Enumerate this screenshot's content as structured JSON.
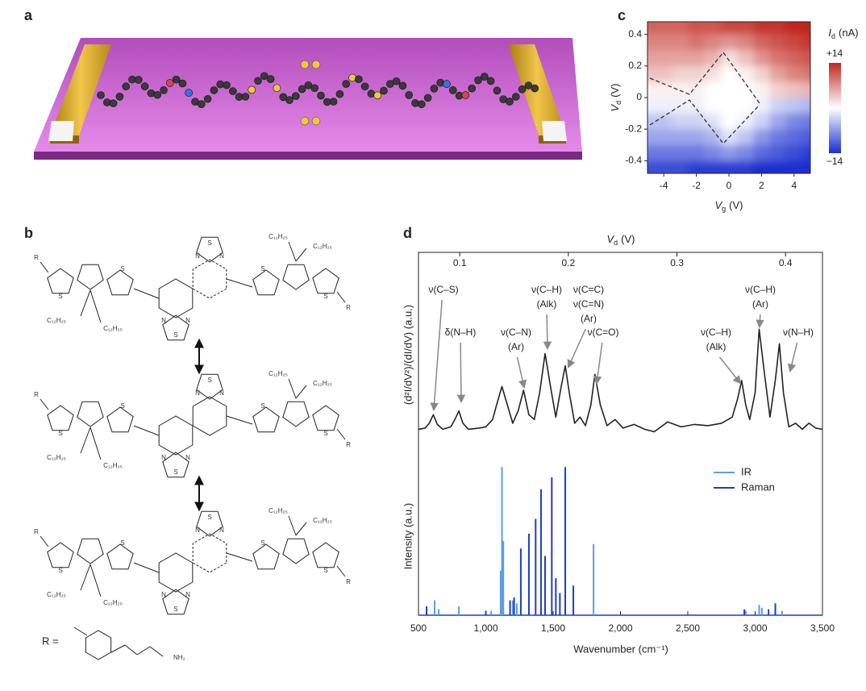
{
  "panel_labels": [
    "a",
    "b",
    "c",
    "d"
  ],
  "structure": {
    "r": "R",
    "s": "S",
    "n": "N",
    "alkyl": "C₁₂H₂₅",
    "r_def": "R =",
    "amine": "NH₂"
  },
  "chart_data": [
    {
      "type": "heatmap",
      "x": [
        -5,
        -4,
        -3,
        -2,
        -1,
        0,
        1,
        2,
        3,
        4,
        5
      ],
      "y": [
        0.45,
        0.35,
        0.25,
        0.15,
        0.05,
        -0.05,
        -0.15,
        -0.25,
        -0.35,
        -0.45
      ],
      "values": [
        [
          10,
          10,
          10,
          11,
          11,
          12,
          12,
          13,
          13,
          14,
          14
        ],
        [
          8,
          8,
          8,
          9,
          8,
          7,
          8,
          10,
          11,
          12,
          13
        ],
        [
          6,
          6,
          6,
          6,
          5,
          2,
          4,
          7,
          9,
          10,
          11
        ],
        [
          4,
          4,
          3,
          3,
          2,
          0,
          1,
          3,
          6,
          8,
          9
        ],
        [
          1,
          1,
          1,
          1,
          0,
          0,
          0,
          1,
          3,
          4,
          5
        ],
        [
          -1,
          -1,
          -1,
          -1,
          0,
          0,
          0,
          -1,
          -3,
          -4,
          -5
        ],
        [
          -4,
          -4,
          -3,
          -3,
          -2,
          0,
          -1,
          -3,
          -6,
          -8,
          -9
        ],
        [
          -6,
          -6,
          -6,
          -6,
          -5,
          -2,
          -4,
          -7,
          -9,
          -10,
          -11
        ],
        [
          -9,
          -9,
          -9,
          -9,
          -8,
          -7,
          -8,
          -10,
          -11,
          -12,
          -13
        ],
        [
          -12,
          -12,
          -12,
          -13,
          -13,
          -13,
          -13,
          -14,
          -14,
          -14,
          -14
        ]
      ],
      "xlim": [
        -5,
        5
      ],
      "ylim": [
        -0.48,
        0.48
      ],
      "xticks": [
        -4,
        -2,
        0,
        2,
        4
      ],
      "yticks": [
        -0.4,
        -0.2,
        0,
        0.2,
        0.4
      ],
      "xlabel": {
        "symbol": "V",
        "sub": "g",
        "unit": "(V)"
      },
      "ylabel": {
        "symbol": "V",
        "sub": "d",
        "unit": "(V)"
      },
      "colorbar": {
        "symbol": "I",
        "sub": "d",
        "unit": "(nA)",
        "zlim": [
          -14,
          14
        ],
        "ticks": [
          {
            "value": 14,
            "label": "+14"
          },
          {
            "value": -14,
            "label": "−14"
          }
        ],
        "colors": [
          "#1a2fd0",
          "#ffffff",
          "#c0271f"
        ]
      }
    },
    {
      "type": "spectrum",
      "xlabel": "Wavenumber (cm⁻¹)",
      "xlim": [
        500,
        3500
      ],
      "xticks": [
        500,
        {
          "value": 1000,
          "label": "1,000"
        },
        {
          "value": 1500,
          "label": "1,500"
        },
        {
          "value": 2000,
          "label": "2,000"
        },
        {
          "value": 2500,
          "label": "2,500"
        },
        {
          "value": 3000,
          "label": "3,000"
        },
        {
          "value": 3500,
          "label": "3,500"
        }
      ],
      "x2label": {
        "symbol": "V",
        "sub": "d",
        "unit": "(V)"
      },
      "x2lim": [
        0.062,
        0.434
      ],
      "x2ticks": [
        0.1,
        0.2,
        0.3,
        0.4
      ],
      "top": {
        "ylabel": "(d²I/dV²)/(dI/dV) (a.u.)",
        "ylim": [
          -0.05,
          1
        ],
        "x": [
          500,
          550,
          580,
          610,
          640,
          680,
          740,
          770,
          800,
          830,
          870,
          950,
          1000,
          1050,
          1080,
          1120,
          1160,
          1200,
          1240,
          1280,
          1320,
          1360,
          1400,
          1440,
          1480,
          1520,
          1560,
          1590,
          1620,
          1660,
          1700,
          1740,
          1780,
          1810,
          1850,
          1900,
          1960,
          2020,
          2100,
          2180,
          2250,
          2350,
          2450,
          2550,
          2650,
          2750,
          2830,
          2870,
          2900,
          2930,
          2960,
          3000,
          3030,
          3070,
          3110,
          3150,
          3180,
          3210,
          3250,
          3300,
          3350,
          3400,
          3450,
          3500
        ],
        "series": [
          {
            "color": "#222222",
            "values": [
              0.0,
              0.01,
              0.05,
              0.12,
              0.04,
              0.0,
              0.02,
              0.08,
              0.15,
              0.05,
              0.0,
              0.01,
              0.02,
              0.08,
              0.2,
              0.35,
              0.2,
              0.05,
              0.15,
              0.32,
              0.12,
              0.08,
              0.3,
              0.62,
              0.35,
              0.1,
              0.35,
              0.52,
              0.3,
              0.05,
              0.1,
              0.03,
              0.2,
              0.45,
              0.2,
              0.03,
              0.08,
              0.01,
              0.04,
              0.0,
              -0.02,
              0.06,
              0.02,
              0.04,
              0.03,
              0.05,
              0.1,
              0.25,
              0.4,
              0.2,
              0.08,
              0.3,
              0.82,
              0.45,
              0.1,
              0.4,
              0.7,
              0.3,
              0.02,
              0.05,
              0.0,
              0.05,
              0.01,
              0.0
            ]
          }
        ],
        "annotations": [
          {
            "lines": [
              "ν(C–S)"
            ]
          },
          {
            "lines": [
              "δ(N–H)"
            ]
          },
          {
            "lines": [
              "ν(C–N)",
              "(Ar)"
            ]
          },
          {
            "lines": [
              "ν(C–H)",
              "(Alk)"
            ]
          },
          {
            "lines": [
              "ν(C=C)",
              "ν(C=N)",
              "(Ar)"
            ]
          },
          {
            "lines": [
              "ν(C=O)"
            ]
          },
          {
            "lines": [
              "ν(C–H)",
              "(Alk)"
            ]
          },
          {
            "lines": [
              "ν(C–H)",
              "(Ar)"
            ]
          },
          {
            "lines": [
              "ν(N–H)"
            ]
          }
        ]
      },
      "bottom": {
        "ylabel": "Intensity (a.u.)",
        "ylim": [
          0,
          1.05
        ],
        "legend": "upper right",
        "series": [
          {
            "name": "IR",
            "color": "#5b9ee0",
            "x": [
              560,
              620,
              650,
              800,
              1040,
              1110,
              1120,
              1130,
              1200,
              1230,
              1800,
              2930,
              3030,
              3050,
              3150,
              3200
            ],
            "values": [
              0.03,
              0.1,
              0.04,
              0.06,
              0.03,
              0.3,
              1.0,
              0.5,
              0.1,
              0.08,
              0.48,
              0.03,
              0.07,
              0.05,
              0.05,
              0.03
            ]
          },
          {
            "name": "Raman",
            "color": "#1f3cc7",
            "x": [
              560,
              1000,
              1180,
              1210,
              1260,
              1320,
              1370,
              1410,
              1440,
              1490,
              1520,
              1550,
              1590,
              1650,
              2920,
              3100,
              3150
            ],
            "values": [
              0.06,
              0.03,
              0.1,
              0.12,
              0.45,
              0.55,
              0.65,
              0.85,
              0.4,
              0.93,
              0.25,
              0.15,
              1.0,
              0.2,
              0.04,
              0.04,
              0.08
            ]
          }
        ]
      }
    }
  ]
}
